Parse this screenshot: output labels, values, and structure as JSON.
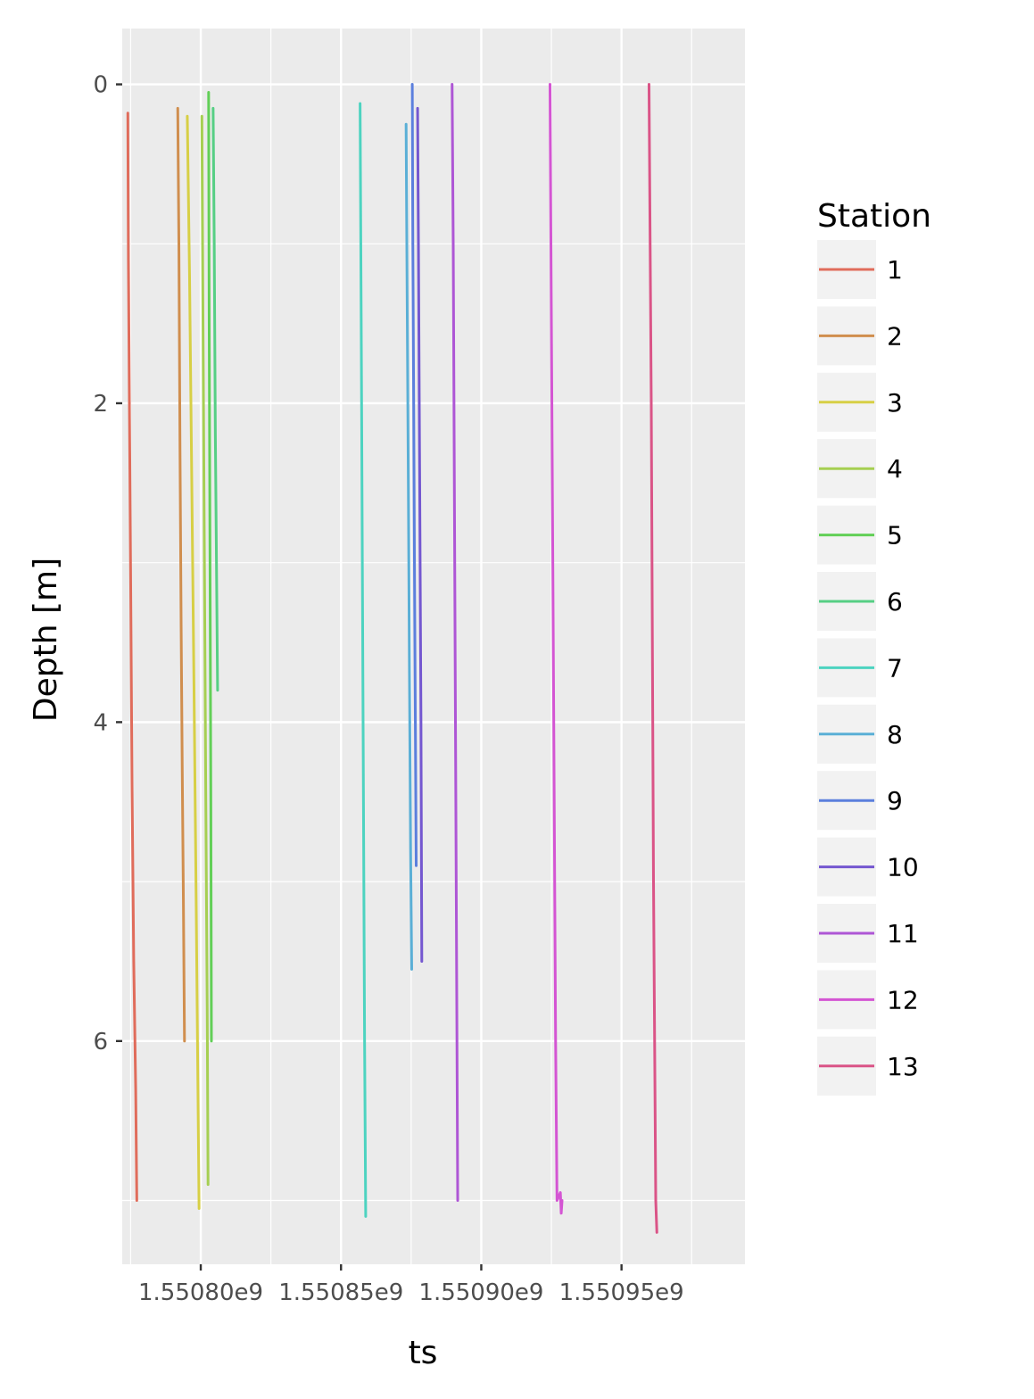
{
  "chart_data": {
    "type": "line",
    "title": "",
    "xlabel": "ts",
    "ylabel": "Depth [m]",
    "x_scale": "linear",
    "y_reversed": true,
    "xlim": [
      1550772000,
      1550994000
    ],
    "ylim": [
      -0.35,
      7.4
    ],
    "x_ticks": [
      1550800000,
      1550850000,
      1550900000,
      1550950000
    ],
    "x_tick_labels": [
      "1.55080e9",
      "1.55085e9",
      "1.55090e9",
      "1.55095e9"
    ],
    "y_ticks": [
      0,
      2,
      4,
      6
    ],
    "y_tick_labels": [
      "0",
      "2",
      "4",
      "6"
    ],
    "grid": true,
    "panel_background": "#EBEBEB",
    "legend": {
      "title": "Station",
      "position": "right"
    },
    "series": [
      {
        "name": "1",
        "color": "#E06C5B",
        "points": [
          [
            1550774000,
            0.18
          ],
          [
            1550774200,
            1.1
          ],
          [
            1550774600,
            2.1
          ],
          [
            1550775000,
            3.1
          ],
          [
            1550775500,
            4.4
          ],
          [
            1550776100,
            5.5
          ],
          [
            1550776800,
            6.3
          ],
          [
            1550777200,
            7.0
          ]
        ]
      },
      {
        "name": "2",
        "color": "#D08E4E",
        "points": [
          [
            1550791800,
            0.15
          ],
          [
            1550792200,
            1.0
          ],
          [
            1550792600,
            2.3
          ],
          [
            1550793000,
            3.4
          ],
          [
            1550793400,
            4.3
          ],
          [
            1550793800,
            5.1
          ],
          [
            1550794200,
            6.0
          ]
        ]
      },
      {
        "name": "3",
        "color": "#D7CF45",
        "points": [
          [
            1550795200,
            0.2
          ],
          [
            1550796000,
            1.2
          ],
          [
            1550796800,
            2.5
          ],
          [
            1550797600,
            3.8
          ],
          [
            1550798400,
            5.2
          ],
          [
            1550799400,
            7.05
          ]
        ]
      },
      {
        "name": "4",
        "color": "#A6CF52",
        "points": [
          [
            1550800400,
            0.2
          ],
          [
            1550800800,
            1.5
          ],
          [
            1550801300,
            3.0
          ],
          [
            1550801800,
            4.5
          ],
          [
            1550802300,
            5.8
          ],
          [
            1550802600,
            6.9
          ]
        ]
      },
      {
        "name": "5",
        "color": "#62CF57",
        "points": [
          [
            1550802800,
            0.05
          ],
          [
            1550803000,
            1.5
          ],
          [
            1550803300,
            3.0
          ],
          [
            1550803600,
            4.5
          ],
          [
            1550803800,
            6.0
          ]
        ]
      },
      {
        "name": "6",
        "color": "#56CF84",
        "points": [
          [
            1550804400,
            0.15
          ],
          [
            1550804800,
            1.0
          ],
          [
            1550805200,
            2.2
          ],
          [
            1550805600,
            3.0
          ],
          [
            1550806000,
            3.8
          ]
        ]
      },
      {
        "name": "7",
        "color": "#4DD3C0",
        "points": [
          [
            1550856800,
            0.12
          ],
          [
            1550857200,
            1.5
          ],
          [
            1550857600,
            3.0
          ],
          [
            1550858000,
            4.5
          ],
          [
            1550858400,
            6.0
          ],
          [
            1550858800,
            7.1
          ]
        ]
      },
      {
        "name": "8",
        "color": "#5AAFD6",
        "points": [
          [
            1550873200,
            0.25
          ],
          [
            1550873600,
            1.4
          ],
          [
            1550874000,
            2.5
          ],
          [
            1550874400,
            3.7
          ],
          [
            1550874800,
            4.8
          ],
          [
            1550875200,
            5.55
          ]
        ]
      },
      {
        "name": "9",
        "color": "#5B7FDD",
        "points": [
          [
            1550875400,
            0.0
          ],
          [
            1550875600,
            1.0
          ],
          [
            1550875900,
            2.0
          ],
          [
            1550876200,
            3.1
          ],
          [
            1550876500,
            4.0
          ],
          [
            1550876800,
            4.9
          ]
        ]
      },
      {
        "name": "10",
        "color": "#7457D0",
        "points": [
          [
            1550877300,
            0.15
          ],
          [
            1550877600,
            1.0
          ],
          [
            1550877900,
            2.0
          ],
          [
            1550878200,
            3.0
          ],
          [
            1550878500,
            4.0
          ],
          [
            1550878800,
            5.5
          ]
        ]
      },
      {
        "name": "11",
        "color": "#AE56D5",
        "points": [
          [
            1550889600,
            0.0
          ],
          [
            1550890000,
            1.0
          ],
          [
            1550890400,
            2.5
          ],
          [
            1550890800,
            4.0
          ],
          [
            1550891200,
            5.5
          ],
          [
            1550891600,
            7.0
          ]
        ]
      },
      {
        "name": "12",
        "color": "#D455D3",
        "points": [
          [
            1550924500,
            0.0
          ],
          [
            1550925000,
            1.5
          ],
          [
            1550925500,
            3.0
          ],
          [
            1550926000,
            4.5
          ],
          [
            1550926500,
            6.0
          ],
          [
            1550927000,
            7.0
          ],
          [
            1550928200,
            6.95
          ],
          [
            1550928500,
            7.08
          ],
          [
            1550928800,
            7.0
          ]
        ]
      },
      {
        "name": "13",
        "color": "#DA5487",
        "points": [
          [
            1550959800,
            0.0
          ],
          [
            1550960200,
            1.0
          ],
          [
            1550960600,
            2.0
          ],
          [
            1550961000,
            3.5
          ],
          [
            1550961400,
            5.0
          ],
          [
            1550961800,
            6.0
          ],
          [
            1550962200,
            7.0
          ],
          [
            1550962600,
            7.2
          ]
        ]
      }
    ]
  }
}
